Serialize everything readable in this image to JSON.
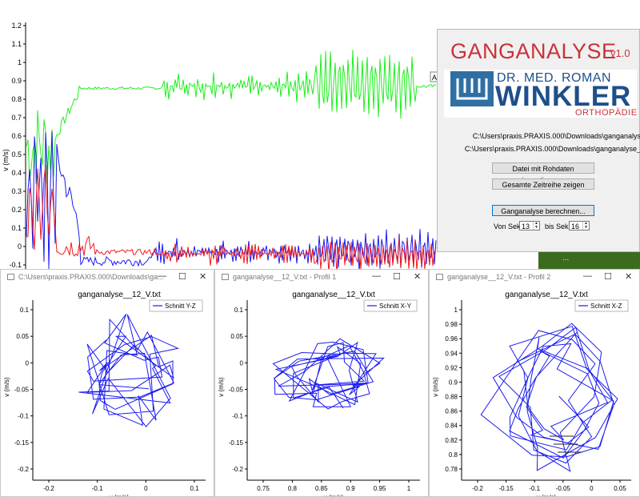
{
  "main_chart": {
    "ylabel": "v (m/s)",
    "yticks": [
      "1.2",
      "1.1",
      "1",
      "0.9",
      "0.8",
      "0.7",
      "0.6",
      "0.5",
      "0.4",
      "0.3",
      "0.2",
      "0.1",
      "0",
      "-0.1"
    ],
    "ylim": [
      -0.15,
      1.2
    ],
    "overlay_label": "A",
    "colors": {
      "green": "#1eef1e",
      "blue": "#1c1cf0",
      "red": "#f01c1c"
    }
  },
  "app": {
    "title": "GANGANALYSE",
    "version": "v1.0",
    "logo": {
      "line1": "DR. MED. ROMAN",
      "line2": "WINKLER",
      "line3": "ORTHOPÄDIE"
    },
    "path1": "C:\\Users\\praxis.PRAXIS.000\\Downloads\\ganganalys",
    "path2": "C:\\Users\\praxis.PRAXIS.000\\Downloads\\ganganalyse_",
    "btn_import": "Datei mit Rohdaten importieren...",
    "btn_series": "Gesamte Zeitreihe zeigen",
    "btn_calc": "Ganganalyse berechnen...",
    "from_label": "Von Sek.",
    "from_value": "13",
    "to_label": "bis Sek.",
    "to_value": "16"
  },
  "background_sliver": "...",
  "windows": [
    {
      "title": "C:\\Users\\praxis.PRAXIS.000\\Downloads\\ga...",
      "plot_title": "ganganalyse__12_V.txt",
      "legend": "Schnitt Y-Z",
      "xlabel": "v (m/s)",
      "ylabel": "v (m/s)",
      "xticks": [
        "-0.2",
        "-0.1",
        "0",
        "0.1"
      ],
      "yticks": [
        "0.1",
        "0.05",
        "0",
        "-0.05",
        "-0.1",
        "-0.15",
        "-0.2"
      ]
    },
    {
      "title": "ganganalyse__12_V.txt - Profil 1",
      "plot_title": "ganganalyse__12_V.txt",
      "legend": "Schnitt X-Y",
      "xlabel": "v (m/s)",
      "ylabel": "v (m/s)",
      "xticks": [
        "0.75",
        "0.8",
        "0.85",
        "0.9",
        "0.95",
        "1"
      ],
      "yticks": [
        "0.1",
        "0.05",
        "0",
        "-0.05",
        "-0.1",
        "-0.15",
        "-0.2"
      ]
    },
    {
      "title": "ganganalyse__12_V.txt - Profil 2",
      "plot_title": "ganganalyse__12_V.txt",
      "legend": "Schnitt X-Z",
      "xlabel": "v (m/s)",
      "ylabel": "v (m/s)",
      "xticks": [
        "-0.2",
        "-0.15",
        "-0.1",
        "-0.05",
        "0",
        "0.05"
      ],
      "yticks": [
        "1",
        "0.98",
        "0.96",
        "0.94",
        "0.92",
        "0.9",
        "0.88",
        "0.86",
        "0.84",
        "0.82",
        "0.8",
        "0.78"
      ]
    }
  ]
}
